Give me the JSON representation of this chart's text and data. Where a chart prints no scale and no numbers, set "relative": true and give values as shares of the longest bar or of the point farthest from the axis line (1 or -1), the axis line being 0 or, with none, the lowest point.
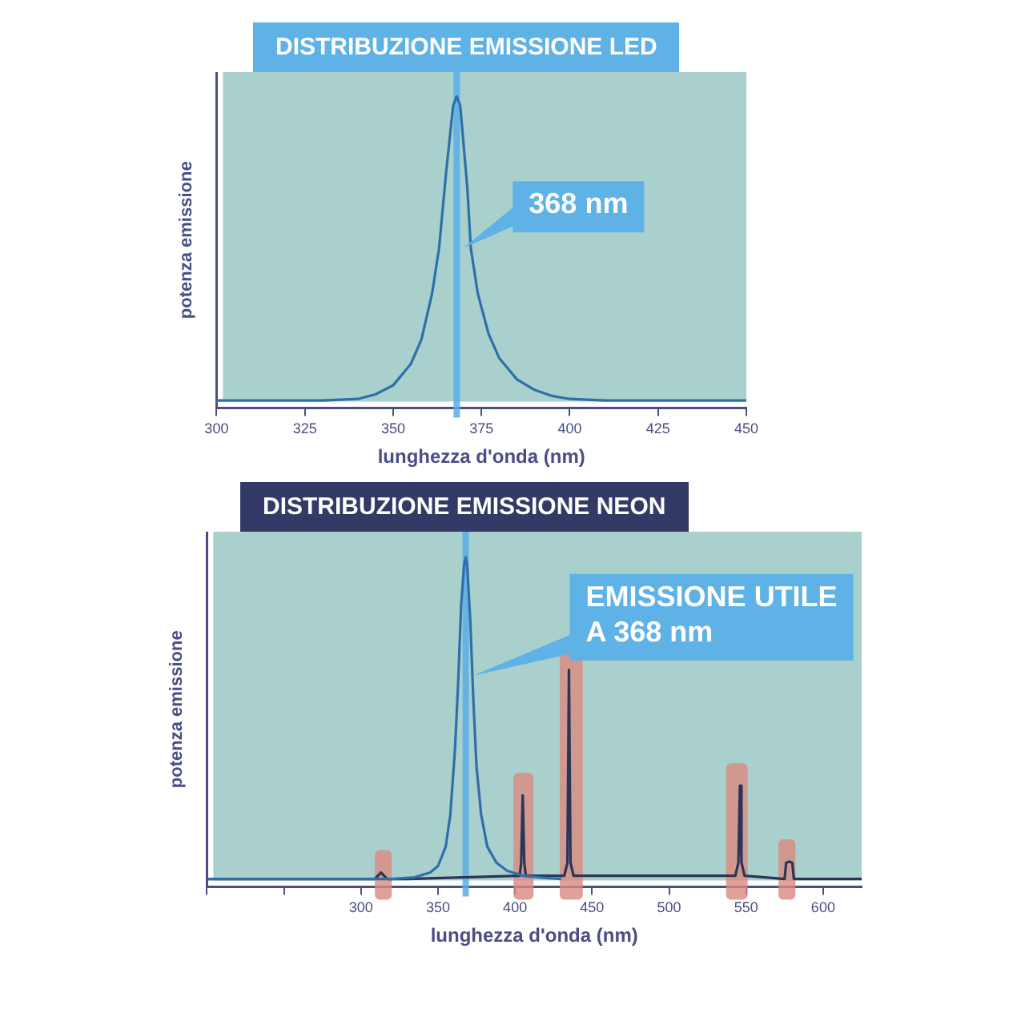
{
  "chart_data": [
    {
      "type": "line",
      "title": "DISTRIBUZIONE EMISSIONE LED",
      "xlabel": "lunghezza d'onda (nm)",
      "ylabel": "potenza emissione",
      "relative": true,
      "xlim": [
        300,
        450
      ],
      "xticks": [
        300,
        325,
        350,
        375,
        400,
        425,
        450
      ],
      "grid": false,
      "legend": false,
      "marker": "none",
      "series": [
        {
          "color": "#2f6fa8",
          "x": [
            300,
            330,
            340,
            345,
            350,
            355,
            358,
            361,
            363,
            365,
            367,
            368,
            369,
            371,
            372,
            374,
            377,
            380,
            385,
            390,
            395,
            400,
            410,
            450
          ],
          "values": [
            0,
            0,
            0.005,
            0.02,
            0.05,
            0.12,
            0.2,
            0.35,
            0.5,
            0.75,
            0.97,
            1,
            0.97,
            0.7,
            0.5,
            0.35,
            0.22,
            0.14,
            0.07,
            0.035,
            0.015,
            0.005,
            0,
            0
          ]
        }
      ],
      "ref_lines": [
        {
          "axis": "x",
          "value": 368,
          "color": "#5aaee6"
        }
      ],
      "annotations": [
        {
          "text": "368 nm",
          "x": 368,
          "y": 0.5
        }
      ]
    },
    {
      "type": "line",
      "title": "DISTRIBUZIONE EMISSIONE NEON",
      "xlabel": "lunghezza d'onda (nm)",
      "ylabel": "potenza emissione",
      "relative": true,
      "xlim": [
        200,
        625
      ],
      "xticks": [
        {
          "value": 200,
          "label": null
        },
        {
          "value": 250,
          "label": null
        },
        300,
        350,
        400,
        450,
        500,
        550,
        600
      ],
      "grid": false,
      "legend": false,
      "marker": "none",
      "series": [
        {
          "color": "#2f6fa8",
          "x": [
            200,
            320,
            335,
            345,
            350,
            355,
            358,
            361,
            363,
            365,
            367,
            368,
            369,
            371,
            373,
            375,
            378,
            382,
            388,
            395,
            405,
            420,
            430
          ],
          "values": [
            0,
            0,
            0.005,
            0.02,
            0.04,
            0.1,
            0.2,
            0.4,
            0.6,
            0.85,
            0.98,
            1,
            0.97,
            0.8,
            0.55,
            0.35,
            0.2,
            0.1,
            0.05,
            0.025,
            0.01,
            0.003,
            0
          ]
        },
        {
          "color": "#2a3558",
          "x": [
            200,
            309,
            313,
            317,
            330,
            403,
            404,
            405,
            406,
            407,
            432,
            434,
            435,
            436,
            438,
            543,
            545,
            546,
            547,
            549,
            575,
            576,
            578,
            580,
            581,
            625
          ],
          "values": [
            0,
            0,
            0.02,
            0,
            0,
            0.01,
            0.05,
            0.26,
            0.05,
            0.01,
            0.01,
            0.05,
            0.65,
            0.05,
            0.01,
            0.01,
            0.05,
            0.29,
            0.05,
            0.01,
            0,
            0.05,
            0.054,
            0.05,
            0,
            0
          ]
        }
      ],
      "bands": [
        {
          "axis": "x",
          "from": 309,
          "to": 320,
          "color": "#d98a80"
        },
        {
          "axis": "x",
          "from": 399,
          "to": 412,
          "color": "#d98a80"
        },
        {
          "axis": "x",
          "from": 429,
          "to": 444,
          "color": "#d98a80"
        },
        {
          "axis": "x",
          "from": 537,
          "to": 551,
          "color": "#d98a80"
        },
        {
          "axis": "x",
          "from": 571,
          "to": 582,
          "color": "#d98a80"
        }
      ],
      "ref_lines": [
        {
          "axis": "x",
          "value": 368,
          "color": "#5aaee6"
        }
      ],
      "annotations": [
        {
          "text": "EMISSIONE UTILE A 368 nm",
          "x": 368,
          "y": 0.63
        }
      ]
    }
  ]
}
